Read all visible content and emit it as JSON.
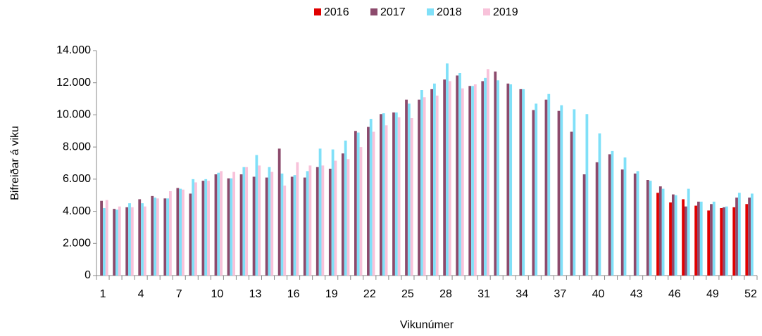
{
  "chart_data": {
    "type": "bar",
    "xlabel": "Vikunúmer",
    "ylabel": "Bifreiðar á viku",
    "categories": [
      1,
      null,
      null,
      4,
      null,
      null,
      7,
      null,
      null,
      10,
      null,
      null,
      13,
      null,
      null,
      16,
      null,
      null,
      19,
      null,
      null,
      22,
      null,
      null,
      25,
      null,
      null,
      28,
      null,
      null,
      31,
      null,
      null,
      34,
      null,
      null,
      37,
      null,
      null,
      40,
      null,
      null,
      43,
      null,
      null,
      46,
      null,
      null,
      49,
      null,
      null,
      52
    ],
    "series": [
      {
        "name": "2016",
        "color": "#e00000",
        "values": [
          null,
          null,
          null,
          null,
          null,
          null,
          null,
          null,
          null,
          null,
          null,
          null,
          null,
          null,
          null,
          null,
          null,
          null,
          null,
          null,
          null,
          null,
          null,
          null,
          null,
          null,
          null,
          null,
          null,
          null,
          null,
          null,
          null,
          null,
          null,
          null,
          null,
          null,
          null,
          null,
          null,
          null,
          null,
          null,
          5150,
          4550,
          4750,
          4350,
          4050,
          4200,
          4250,
          4450
        ]
      },
      {
        "name": "2017",
        "color": "#8c4a6c",
        "values": [
          4650,
          4150,
          4250,
          4750,
          4950,
          4800,
          5450,
          5100,
          5900,
          6300,
          6050,
          6300,
          6150,
          6100,
          7900,
          6150,
          6100,
          6750,
          6650,
          7600,
          9000,
          9250,
          10050,
          10150,
          10950,
          10950,
          11600,
          12200,
          12450,
          11800,
          12100,
          12700,
          11950,
          11600,
          10300,
          10950,
          10250,
          8950,
          6300,
          7050,
          7550,
          6600,
          6350,
          5950,
          5550,
          5050,
          4300,
          4600,
          4450,
          4250,
          4850,
          4850
        ]
      },
      {
        "name": "2018",
        "color": "#80e0f8",
        "values": [
          4200,
          4100,
          4500,
          4500,
          4850,
          4800,
          5400,
          6000,
          6000,
          6400,
          6050,
          6750,
          7500,
          6750,
          6350,
          6250,
          6500,
          7900,
          7850,
          8400,
          8900,
          9750,
          10100,
          10150,
          10700,
          11550,
          11950,
          13200,
          12600,
          11800,
          12300,
          12150,
          11900,
          11600,
          10700,
          11300,
          10600,
          10350,
          10050,
          8850,
          7750,
          7350,
          6500,
          5900,
          5400,
          5000,
          5400,
          4600,
          4600,
          4300,
          5150,
          5100
        ]
      },
      {
        "name": "2019",
        "color": "#f8c2da",
        "values": [
          4700,
          4300,
          4250,
          4300,
          4800,
          5250,
          5350,
          5800,
          5900,
          6500,
          6450,
          6750,
          6850,
          6450,
          5600,
          7050,
          6850,
          6850,
          7150,
          7250,
          8000,
          8950,
          9350,
          9850,
          9800,
          11100,
          11200,
          12100,
          11650,
          11900,
          12850,
          null,
          null,
          null,
          null,
          null,
          null,
          null,
          null,
          null,
          null,
          null,
          null,
          null,
          null,
          null,
          null,
          null,
          null,
          null,
          null,
          null
        ]
      }
    ],
    "ylim": [
      0,
      14000
    ],
    "yticks": [
      0,
      {
        "value": 2000,
        "label": "2.000"
      },
      {
        "value": 4000,
        "label": "4.000"
      },
      {
        "value": 6000,
        "label": "6.000"
      },
      {
        "value": 8000,
        "label": "8.000"
      },
      {
        "value": 10000,
        "label": "10.000"
      },
      {
        "value": 12000,
        "label": "12.000"
      },
      {
        "value": 14000,
        "label": "14.000"
      }
    ],
    "legend": "top",
    "grid": false
  }
}
